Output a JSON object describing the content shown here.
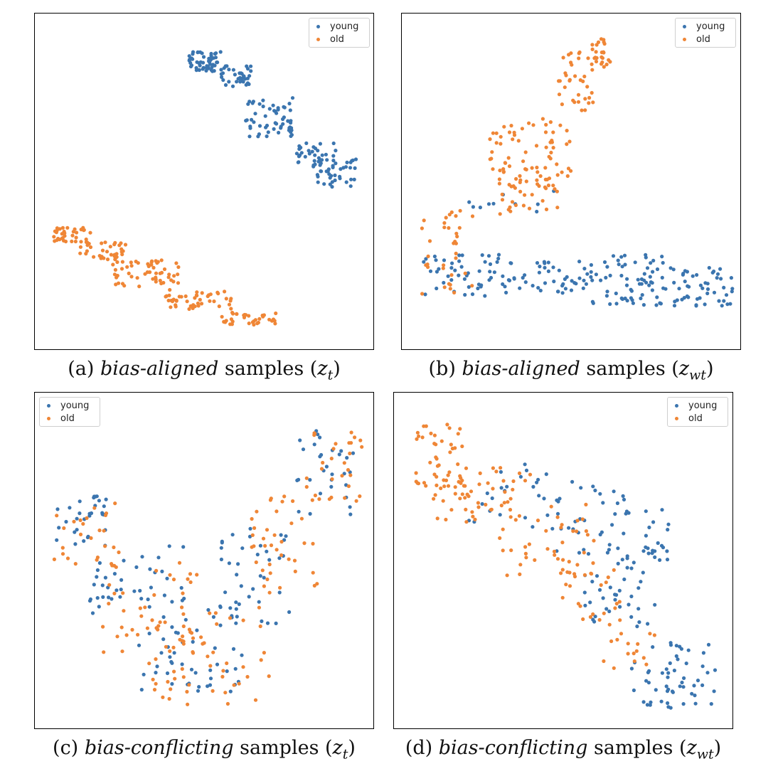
{
  "colors": {
    "young": "#3b75af",
    "old": "#ef8636"
  },
  "legend": {
    "young": "young",
    "old": "old"
  },
  "chart_data": [
    {
      "type": "scatter",
      "caption": {
        "label": "(a)",
        "emph": "bias-aligned",
        "rest": "samples",
        "var": "z",
        "sub": "t"
      },
      "legend_position": "top-right",
      "xlim": [
        0,
        100
      ],
      "ylim": [
        0,
        100
      ],
      "series": [
        {
          "name": "young",
          "clusters": [
            {
              "x": [
                45,
                55
              ],
              "y": [
                84,
                90
              ],
              "n": 55
            },
            {
              "x": [
                55,
                64
              ],
              "y": [
                79,
                86
              ],
              "n": 35
            },
            {
              "x": [
                62,
                77
              ],
              "y": [
                64,
                76
              ],
              "n": 55
            },
            {
              "x": [
                78,
                90
              ],
              "y": [
                56,
                62
              ],
              "n": 30
            },
            {
              "x": [
                82,
                96
              ],
              "y": [
                48,
                57
              ],
              "n": 45
            }
          ]
        },
        {
          "name": "old",
          "clusters": [
            {
              "x": [
                4,
                16
              ],
              "y": [
                31,
                36
              ],
              "n": 35
            },
            {
              "x": [
                12,
                26
              ],
              "y": [
                26,
                32
              ],
              "n": 35
            },
            {
              "x": [
                22,
                42
              ],
              "y": [
                18,
                26
              ],
              "n": 55
            },
            {
              "x": [
                38,
                58
              ],
              "y": [
                11,
                17
              ],
              "n": 45
            },
            {
              "x": [
                55,
                72
              ],
              "y": [
                6,
                10
              ],
              "n": 35
            }
          ]
        }
      ]
    },
    {
      "type": "scatter",
      "caption": {
        "label": "(b)",
        "emph": "bias-aligned",
        "rest": "samples",
        "var": "z",
        "sub": "wt"
      },
      "legend_position": "top-right",
      "xlim": [
        0,
        100
      ],
      "ylim": [
        0,
        100
      ],
      "series": [
        {
          "name": "young",
          "clusters": [
            {
              "x": [
                4,
                30
              ],
              "y": [
                15,
                28
              ],
              "n": 45
            },
            {
              "x": [
                28,
                56
              ],
              "y": [
                14,
                26
              ],
              "n": 50
            },
            {
              "x": [
                55,
                78
              ],
              "y": [
                12,
                28
              ],
              "n": 60
            },
            {
              "x": [
                74,
                99
              ],
              "y": [
                12,
                24
              ],
              "n": 55
            },
            {
              "x": [
                17,
                45
              ],
              "y": [
                38,
                48
              ],
              "n": 10
            }
          ]
        },
        {
          "name": "old",
          "clusters": [
            {
              "x": [
                46,
                60
              ],
              "y": [
                72,
                90
              ],
              "n": 40
            },
            {
              "x": [
                56,
                62
              ],
              "y": [
                86,
                94
              ],
              "n": 20
            },
            {
              "x": [
                25,
                50
              ],
              "y": [
                50,
                70
              ],
              "n": 60
            },
            {
              "x": [
                28,
                46
              ],
              "y": [
                40,
                56
              ],
              "n": 40
            },
            {
              "x": [
                4,
                20
              ],
              "y": [
                14,
                42
              ],
              "n": 35
            }
          ]
        }
      ]
    },
    {
      "type": "scatter",
      "caption": {
        "label": "(c)",
        "emph": "bias-conflicting",
        "rest": "samples",
        "var": "z",
        "sub": "t"
      },
      "legend_position": "top-left",
      "xlim": [
        0,
        100
      ],
      "ylim": [
        0,
        100
      ],
      "series": [
        {
          "name": "young",
          "clusters": [
            {
              "x": [
                4,
                20
              ],
              "y": [
                55,
                70
              ],
              "n": 30
            },
            {
              "x": [
                15,
                45
              ],
              "y": [
                32,
                55
              ],
              "n": 40
            },
            {
              "x": [
                28,
                62
              ],
              "y": [
                10,
                40
              ],
              "n": 55
            },
            {
              "x": [
                55,
                80
              ],
              "y": [
                30,
                60
              ],
              "n": 35
            },
            {
              "x": [
                78,
                96
              ],
              "y": [
                60,
                90
              ],
              "n": 30
            }
          ]
        },
        {
          "name": "old",
          "clusters": [
            {
              "x": [
                4,
                25
              ],
              "y": [
                48,
                68
              ],
              "n": 25
            },
            {
              "x": [
                18,
                48
              ],
              "y": [
                22,
                50
              ],
              "n": 40
            },
            {
              "x": [
                30,
                70
              ],
              "y": [
                5,
                35
              ],
              "n": 55
            },
            {
              "x": [
                62,
                85
              ],
              "y": [
                35,
                70
              ],
              "n": 40
            },
            {
              "x": [
                80,
                98
              ],
              "y": [
                68,
                92
              ],
              "n": 30
            }
          ]
        }
      ]
    },
    {
      "type": "scatter",
      "caption": {
        "label": "(d)",
        "emph": "bias-conflicting",
        "rest": "samples",
        "var": "z",
        "sub": "wt"
      },
      "legend_position": "top-right",
      "xlim": [
        0,
        100
      ],
      "ylim": [
        0,
        100
      ],
      "series": [
        {
          "name": "young",
          "clusters": [
            {
              "x": [
                20,
                45
              ],
              "y": [
                62,
                80
              ],
              "n": 20
            },
            {
              "x": [
                40,
                70
              ],
              "y": [
                50,
                75
              ],
              "n": 40
            },
            {
              "x": [
                55,
                78
              ],
              "y": [
                30,
                55
              ],
              "n": 45
            },
            {
              "x": [
                70,
                96
              ],
              "y": [
                5,
                25
              ],
              "n": 55
            },
            {
              "x": [
                74,
                82
              ],
              "y": [
                50,
                68
              ],
              "n": 15
            }
          ]
        },
        {
          "name": "old",
          "clusters": [
            {
              "x": [
                4,
                20
              ],
              "y": [
                70,
                92
              ],
              "n": 45
            },
            {
              "x": [
                10,
                40
              ],
              "y": [
                62,
                80
              ],
              "n": 50
            },
            {
              "x": [
                30,
                60
              ],
              "y": [
                45,
                68
              ],
              "n": 40
            },
            {
              "x": [
                48,
                68
              ],
              "y": [
                28,
                48
              ],
              "n": 25
            },
            {
              "x": [
                62,
                78
              ],
              "y": [
                14,
                28
              ],
              "n": 15
            }
          ]
        }
      ]
    }
  ]
}
